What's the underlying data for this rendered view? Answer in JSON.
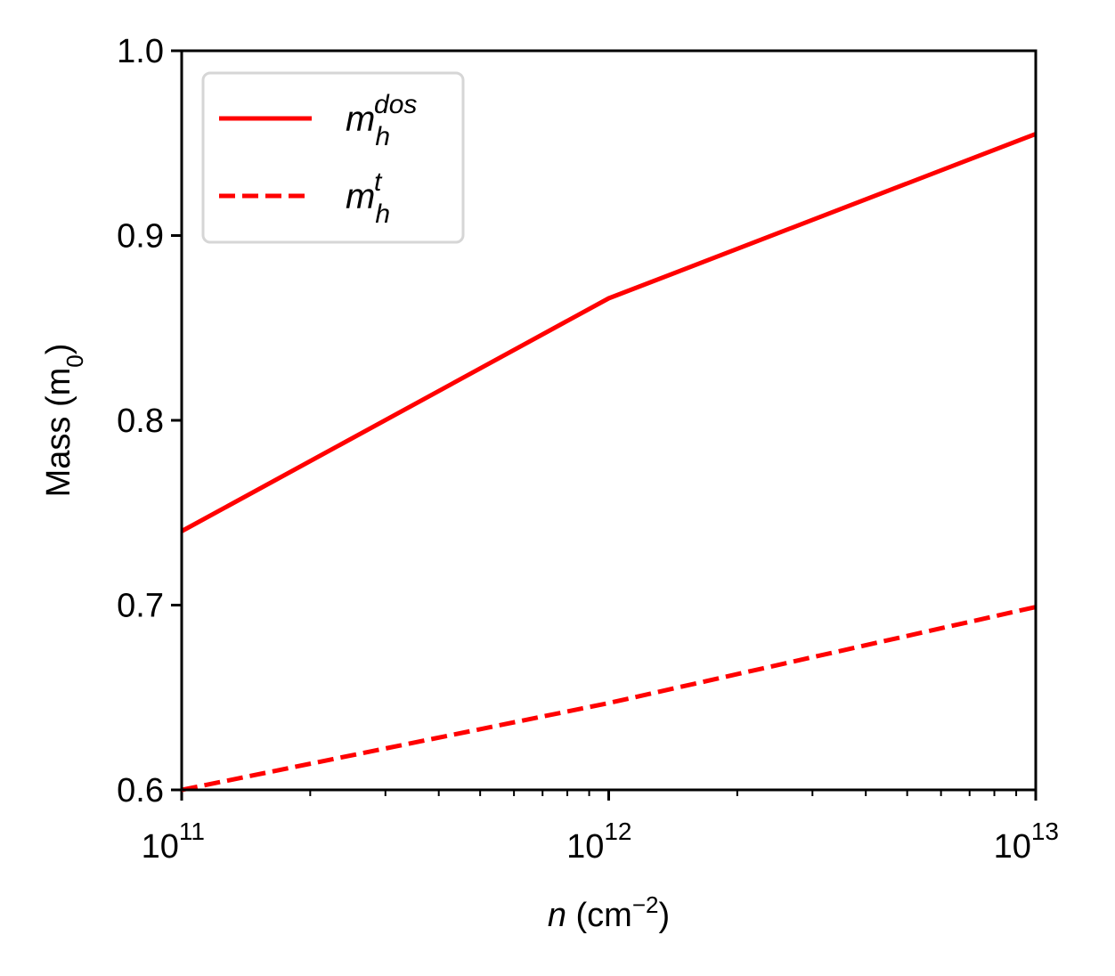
{
  "chart_data": {
    "type": "line",
    "xscale": "log",
    "xlim": [
      100000000000.0,
      10000000000000.0
    ],
    "ylim": [
      0.6,
      1.0
    ],
    "xlabel": {
      "var": "n",
      "unit_prefix": " (cm",
      "unit_exp": "−2",
      "unit_suffix": ")"
    },
    "ylabel": {
      "text": "Mass (m",
      "sub": "0",
      "suffix": ")"
    },
    "x_ticks": [
      {
        "value": 100000000000.0,
        "base": "10",
        "exp": "11"
      },
      {
        "value": 1000000000000.0,
        "base": "10",
        "exp": "12"
      },
      {
        "value": 10000000000000.0,
        "base": "10",
        "exp": "13"
      }
    ],
    "y_ticks": [
      "0.6",
      "0.7",
      "0.8",
      "0.9",
      "1.0"
    ],
    "grid": false,
    "legend_position": "top-left",
    "series": [
      {
        "name": "m_h^dos",
        "label_base": "m",
        "label_sub": "h",
        "label_sup": "dos",
        "style": "solid",
        "color": "#ff0000",
        "x": [
          100000000000.0,
          1000000000000.0,
          10000000000000.0
        ],
        "y": [
          0.74,
          0.866,
          0.955
        ]
      },
      {
        "name": "m_h^t",
        "label_base": "m",
        "label_sub": "h",
        "label_sup": "t",
        "style": "dashed",
        "color": "#ff0000",
        "x": [
          100000000000.0,
          1000000000000.0,
          10000000000000.0
        ],
        "y": [
          0.6,
          0.647,
          0.699
        ]
      }
    ]
  }
}
